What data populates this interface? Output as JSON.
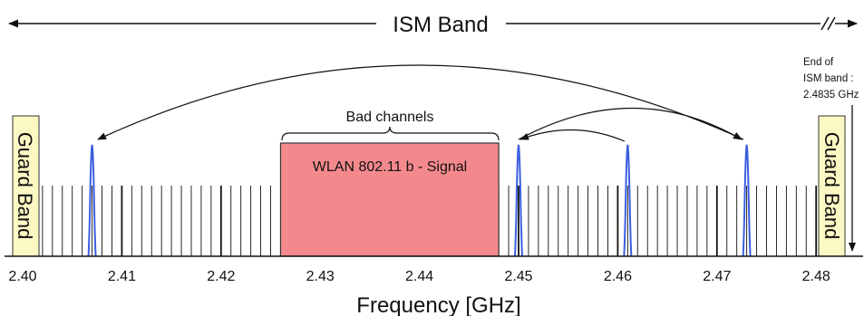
{
  "band": {
    "title": "ISM Band",
    "end_note": [
      "End of",
      "ISM band :",
      "2.4835 GHz"
    ]
  },
  "guard_band_label": "Guard Band",
  "bad_channels_label": "Bad channels",
  "wlan_label": "WLAN 802.11 b - Signal",
  "axis": {
    "label": "Frequency [GHz]",
    "ticks": [
      "2.40",
      "2.41",
      "2.42",
      "2.43",
      "2.44",
      "2.45",
      "2.46",
      "2.47",
      "2.48"
    ],
    "range": [
      2.4,
      2.4835
    ]
  },
  "channels": {
    "first_ghz": 2.402,
    "last_ghz": 2.48,
    "spacing_ghz": 0.001
  },
  "wlan_range_ghz": [
    2.426,
    2.448
  ],
  "hopping_pulses_ghz": [
    2.407,
    2.45,
    2.461,
    2.473
  ],
  "colors": {
    "guard_fill": "#fcf8c4",
    "wlan_fill": "#f4898d",
    "pulse": "#3b5fe0",
    "line": "#111111"
  }
}
